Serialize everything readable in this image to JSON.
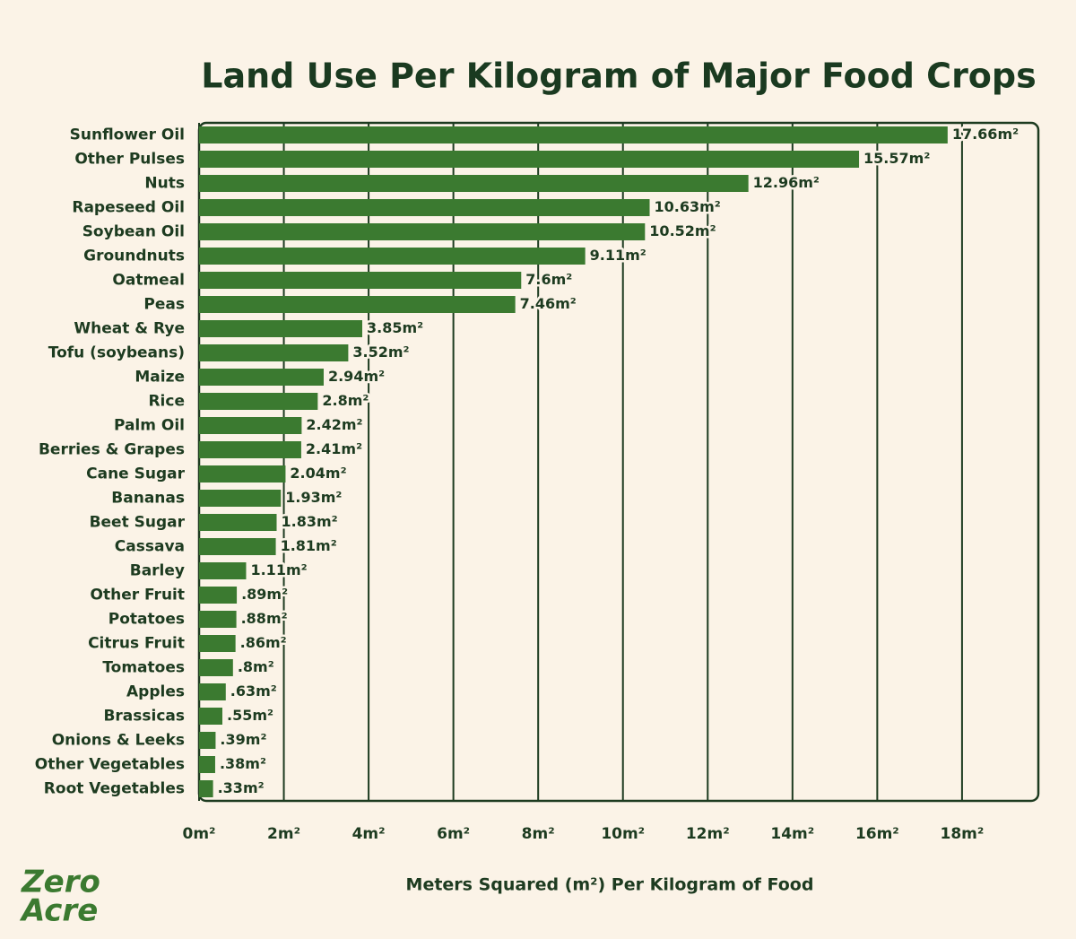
{
  "chart_data": {
    "type": "bar",
    "orientation": "horizontal",
    "title": "Land Use Per Kilogram of Major Food Crops",
    "x_label": "Meters Squared (m²) Per Kilogram of Food",
    "categories": [
      "Sunflower Oil",
      "Other Pulses",
      "Nuts",
      "Rapeseed Oil",
      "Soybean Oil",
      "Groundnuts",
      "Oatmeal",
      "Peas",
      "Wheat & Rye",
      "Tofu (soybeans)",
      "Maize",
      "Rice",
      "Palm Oil",
      "Berries & Grapes",
      "Cane Sugar",
      "Bananas",
      "Beet Sugar",
      "Cassava",
      "Barley",
      "Other Fruit",
      "Potatoes",
      "Citrus Fruit",
      "Tomatoes",
      "Apples",
      "Brassicas",
      "Onions & Leeks",
      "Other Vegetables",
      "Root Vegetables"
    ],
    "values": [
      17.66,
      15.57,
      12.96,
      10.63,
      10.52,
      9.11,
      7.6,
      7.46,
      3.85,
      3.52,
      2.94,
      2.8,
      2.42,
      2.41,
      2.04,
      1.93,
      1.83,
      1.81,
      1.11,
      0.89,
      0.88,
      0.86,
      0.8,
      0.63,
      0.55,
      0.39,
      0.38,
      0.33
    ],
    "value_labels": [
      "17.66m²",
      "15.57m²",
      "12.96m²",
      "10.63m²",
      "10.52m²",
      "9.11m²",
      "7.6m²",
      "7.46m²",
      "3.85m²",
      "3.52m²",
      "2.94m²",
      "2.8m²",
      "2.42m²",
      "2.41m²",
      "2.04m²",
      "1.93m²",
      "1.83m²",
      "1.81m²",
      "1.11m²",
      ".89m²",
      ".88m²",
      ".86m²",
      ".8m²",
      ".63m²",
      ".55m²",
      ".39m²",
      ".38m²",
      ".33m²"
    ],
    "color": "#3b7a30",
    "xlim": [
      0,
      19.8
    ],
    "xticks": [
      {
        "value": 0,
        "label": "0m²"
      },
      {
        "value": 2,
        "label": "2m²"
      },
      {
        "value": 4,
        "label": "4m²"
      },
      {
        "value": 6,
        "label": "6m²"
      },
      {
        "value": 8,
        "label": "8m²"
      },
      {
        "value": 10,
        "label": "10m²"
      },
      {
        "value": 12,
        "label": "12m²"
      },
      {
        "value": 14,
        "label": "14m²"
      },
      {
        "value": 16,
        "label": "16m²"
      },
      {
        "value": 18,
        "label": "18m²"
      }
    ],
    "grid": true
  },
  "logo": [
    "Zero",
    "Acre"
  ]
}
